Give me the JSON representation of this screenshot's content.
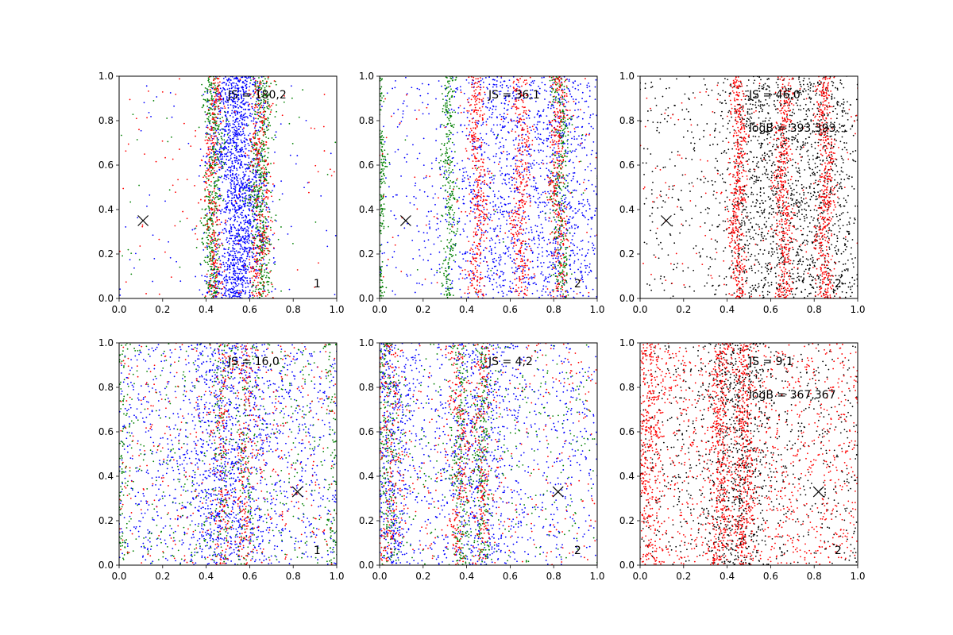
{
  "figure": {
    "background": "#ffffff"
  },
  "colors": {
    "blue": "#0000ff",
    "green": "#008000",
    "red": "#ff0000",
    "black": "#000000"
  },
  "chart_data": [
    {
      "type": "scatter",
      "panel": "top-left",
      "xlim": [
        0,
        1
      ],
      "ylim": [
        0,
        1
      ],
      "xticks": [
        "0.0",
        "0.2",
        "0.4",
        "0.6",
        "0.8",
        "1.0"
      ],
      "yticks": [
        "0.0",
        "0.2",
        "0.4",
        "0.6",
        "0.8",
        "1.0"
      ],
      "js_text": "JS = 180,2",
      "logb_text": "",
      "panel_label": "1",
      "marker": {
        "x": 0.11,
        "y": 0.35
      },
      "series": [
        {
          "color": "blue",
          "count": 1800,
          "bands": [
            [
              0.55,
              0.06
            ]
          ],
          "background": 0.05,
          "wiggle": 0.02
        },
        {
          "color": "green",
          "count": 1000,
          "bands": [
            [
              0.43,
              0.02
            ],
            [
              0.65,
              0.025
            ]
          ],
          "background": 0.05,
          "wiggle": 0.012
        },
        {
          "color": "red",
          "count": 700,
          "bands": [
            [
              0.43,
              0.02
            ],
            [
              0.65,
              0.025
            ]
          ],
          "background": 0.12,
          "wiggle": 0.012
        }
      ]
    },
    {
      "type": "scatter",
      "panel": "top-middle",
      "xlim": [
        0,
        1
      ],
      "ylim": [
        0,
        1
      ],
      "xticks": [
        "0.0",
        "0.2",
        "0.4",
        "0.6",
        "0.8",
        "1.0"
      ],
      "yticks": [
        "0.0",
        "0.2",
        "0.4",
        "0.6",
        "0.8",
        "1.0"
      ],
      "js_text": "JS = 36,1",
      "logb_text": "",
      "panel_label": "2",
      "marker": {
        "x": 0.12,
        "y": 0.35
      },
      "series": [
        {
          "color": "blue",
          "count": 1700,
          "bands": [
            [
              0.55,
              0.12
            ],
            [
              0.82,
              0.1
            ]
          ],
          "background": 0.35,
          "wiggle": 0.02
        },
        {
          "color": "green",
          "count": 900,
          "bands": [
            [
              0.83,
              0.02
            ],
            [
              0.32,
              0.015
            ],
            [
              0.005,
              0.008
            ]
          ],
          "background": 0.03,
          "wiggle": 0.01
        },
        {
          "color": "red",
          "count": 1100,
          "bands": [
            [
              0.45,
              0.02
            ],
            [
              0.65,
              0.02
            ],
            [
              0.82,
              0.02
            ]
          ],
          "background": 0.08,
          "wiggle": 0.012
        }
      ]
    },
    {
      "type": "scatter",
      "panel": "top-right",
      "xlim": [
        0,
        1
      ],
      "ylim": [
        0,
        1
      ],
      "xticks": [
        "0.0",
        "0.2",
        "0.4",
        "0.6",
        "0.8",
        "1.0"
      ],
      "yticks": [
        "0.0",
        "0.2",
        "0.4",
        "0.6",
        "0.8",
        "1.0"
      ],
      "js_text": "JS = 46,0",
      "logb_text": "logB = 393,393",
      "panel_label": "2",
      "marker": {
        "x": 0.12,
        "y": 0.35
      },
      "series": [
        {
          "color": "black",
          "count": 1900,
          "bands": [
            [
              0.55,
              0.1
            ],
            [
              0.82,
              0.1
            ]
          ],
          "background": 0.28,
          "wiggle": 0.02
        },
        {
          "color": "red",
          "count": 1500,
          "bands": [
            [
              0.45,
              0.02
            ],
            [
              0.66,
              0.02
            ],
            [
              0.85,
              0.02
            ]
          ],
          "background": 0.12,
          "wiggle": 0.012
        }
      ]
    },
    {
      "type": "scatter",
      "panel": "bottom-left",
      "xlim": [
        0,
        1
      ],
      "ylim": [
        0,
        1
      ],
      "xticks": [
        "0.0",
        "0.2",
        "0.4",
        "0.6",
        "0.8",
        "1.0"
      ],
      "yticks": [
        "0.0",
        "0.2",
        "0.4",
        "0.6",
        "0.8",
        "1.0"
      ],
      "js_text": "JS = 16,0",
      "logb_text": "",
      "panel_label": "1",
      "marker": {
        "x": 0.82,
        "y": 0.33
      },
      "series": [
        {
          "color": "blue",
          "count": 1800,
          "bands": [
            [
              0.5,
              0.1
            ]
          ],
          "background": 0.6,
          "wiggle": 0.02
        },
        {
          "color": "green",
          "count": 900,
          "bands": [
            [
              0.47,
              0.02
            ],
            [
              0.58,
              0.02
            ],
            [
              0.02,
              0.02
            ],
            [
              0.98,
              0.02
            ]
          ],
          "background": 0.5,
          "wiggle": 0.012
        },
        {
          "color": "red",
          "count": 700,
          "bands": [
            [
              0.47,
              0.02
            ],
            [
              0.58,
              0.02
            ]
          ],
          "background": 0.6,
          "wiggle": 0.012
        }
      ]
    },
    {
      "type": "scatter",
      "panel": "bottom-middle",
      "xlim": [
        0,
        1
      ],
      "ylim": [
        0,
        1
      ],
      "xticks": [
        "0.0",
        "0.2",
        "0.4",
        "0.6",
        "0.8",
        "1.0"
      ],
      "yticks": [
        "0.0",
        "0.2",
        "0.4",
        "0.6",
        "0.8",
        "1.0"
      ],
      "js_text": "JS = 4,2",
      "logb_text": "",
      "panel_label": "2",
      "marker": {
        "x": 0.82,
        "y": 0.33
      },
      "series": [
        {
          "color": "blue",
          "count": 1700,
          "bands": [
            [
              0.45,
              0.08
            ],
            [
              0.05,
              0.05
            ]
          ],
          "background": 0.5,
          "wiggle": 0.02
        },
        {
          "color": "green",
          "count": 1000,
          "bands": [
            [
              0.04,
              0.03
            ],
            [
              0.37,
              0.02
            ],
            [
              0.47,
              0.02
            ]
          ],
          "background": 0.3,
          "wiggle": 0.012
        },
        {
          "color": "red",
          "count": 900,
          "bands": [
            [
              0.04,
              0.03
            ],
            [
              0.37,
              0.02
            ],
            [
              0.47,
              0.02
            ]
          ],
          "background": 0.4,
          "wiggle": 0.012
        }
      ]
    },
    {
      "type": "scatter",
      "panel": "bottom-right",
      "xlim": [
        0,
        1
      ],
      "ylim": [
        0,
        1
      ],
      "xticks": [
        "0.0",
        "0.2",
        "0.4",
        "0.6",
        "0.8",
        "1.0"
      ],
      "yticks": [
        "0.0",
        "0.2",
        "0.4",
        "0.6",
        "0.8",
        "1.0"
      ],
      "js_text": "JS = 9,1",
      "logb_text": "logB = 367,367",
      "panel_label": "2",
      "marker": {
        "x": 0.82,
        "y": 0.33
      },
      "series": [
        {
          "color": "black",
          "count": 1400,
          "bands": [
            [
              0.45,
              0.08
            ]
          ],
          "background": 0.55,
          "wiggle": 0.02
        },
        {
          "color": "red",
          "count": 2200,
          "bands": [
            [
              0.37,
              0.02
            ],
            [
              0.48,
              0.02
            ],
            [
              0.04,
              0.03
            ]
          ],
          "background": 0.55,
          "wiggle": 0.012
        }
      ]
    }
  ]
}
